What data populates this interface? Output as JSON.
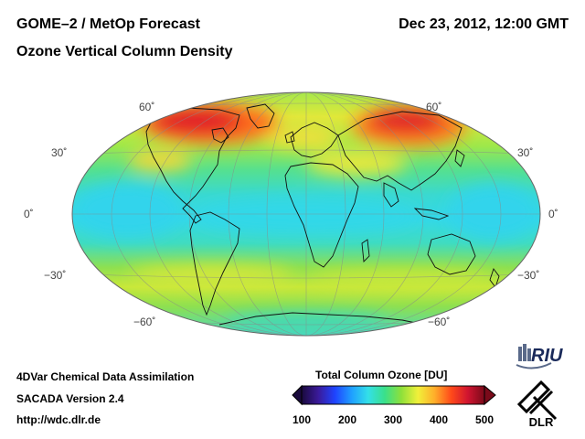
{
  "header": {
    "title_line1": "GOME–2 / MetOp Forecast",
    "title_line2": "Ozone Vertical Column Density",
    "datetime": "Dec 23, 2012, 12:00 GMT"
  },
  "map": {
    "projection": "Hammer-Aitoff (global)",
    "lat_labels": {
      "north60": "60˚",
      "north30": "30˚",
      "equator": "0˚",
      "south30": "−30˚",
      "south60": "−60˚"
    }
  },
  "colorbar": {
    "title": "Total Column Ozone [DU]",
    "ticks": [
      "100",
      "200",
      "300",
      "400",
      "500"
    ],
    "colors": [
      "#1a0a3d",
      "#3a1a9a",
      "#1f43ff",
      "#1f9fff",
      "#33e0e8",
      "#3ae08a",
      "#8ee03a",
      "#f0f03a",
      "#ffae2a",
      "#ff4a1a",
      "#d01430",
      "#7a0a1a"
    ]
  },
  "footer": {
    "line1": "4DVar Chemical Data Assimilation",
    "line2": "SACADA Version 2.4",
    "line3": "http://wdc.dlr.de"
  },
  "logos": {
    "riu": "RIU",
    "dlr": "DLR"
  }
}
